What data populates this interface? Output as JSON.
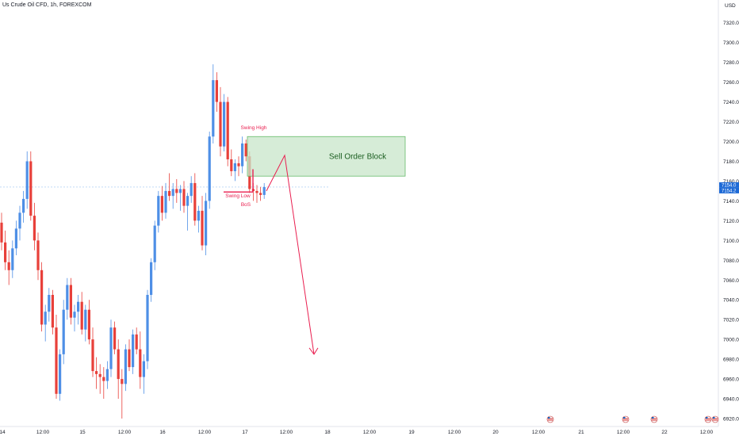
{
  "header": {
    "title": "Us Crude Oil CFD, 1h, FOREXCOM",
    "currency": "USD"
  },
  "colors": {
    "up": "#4e8fe6",
    "down": "#e8403a",
    "annotation": "#e91e4f",
    "order_block_fill": "#c8e6c9",
    "order_block_border": "#66bb6a",
    "price_tag": "#1e6ad6"
  },
  "chart_data": {
    "type": "candlestick",
    "title": "Us Crude Oil CFD, 1h, FOREXCOM",
    "ylim": [
      6912,
      7343
    ],
    "y_ticks": [
      6920.0,
      6940.0,
      6960.0,
      6980.0,
      7000.0,
      7020.0,
      7040.0,
      7060.0,
      7080.0,
      7100.0,
      7120.0,
      7140.0,
      7160.0,
      7180.0,
      7200.0,
      7220.0,
      7240.0,
      7260.0,
      7280.0,
      7300.0,
      7320.0
    ],
    "x_ticks": [
      "14",
      "12:00",
      "15",
      "12:00",
      "16",
      "12:00",
      "17",
      "12:00",
      "18",
      "12:00",
      "19",
      "12:00",
      "20",
      "12:00",
      "21",
      "12:00",
      "22",
      "12:00"
    ],
    "candles": [
      {
        "o": 7118,
        "h": 7128,
        "l": 7090,
        "c": 7098
      },
      {
        "o": 7098,
        "h": 7110,
        "l": 7070,
        "c": 7078
      },
      {
        "o": 7078,
        "h": 7090,
        "l": 7055,
        "c": 7070
      },
      {
        "o": 7070,
        "h": 7100,
        "l": 7062,
        "c": 7092
      },
      {
        "o": 7092,
        "h": 7120,
        "l": 7085,
        "c": 7112
      },
      {
        "o": 7112,
        "h": 7135,
        "l": 7100,
        "c": 7128
      },
      {
        "o": 7128,
        "h": 7150,
        "l": 7118,
        "c": 7142
      },
      {
        "o": 7142,
        "h": 7190,
        "l": 7132,
        "c": 7180
      },
      {
        "o": 7180,
        "h": 7190,
        "l": 7120,
        "c": 7125
      },
      {
        "o": 7125,
        "h": 7138,
        "l": 7090,
        "c": 7100
      },
      {
        "o": 7100,
        "h": 7108,
        "l": 7060,
        "c": 7070
      },
      {
        "o": 7070,
        "h": 7078,
        "l": 7008,
        "c": 7015
      },
      {
        "o": 7015,
        "h": 7035,
        "l": 6998,
        "c": 7028
      },
      {
        "o": 7028,
        "h": 7052,
        "l": 7018,
        "c": 7045
      },
      {
        "o": 7045,
        "h": 7050,
        "l": 7005,
        "c": 7012
      },
      {
        "o": 7012,
        "h": 7025,
        "l": 6940,
        "c": 6945
      },
      {
        "o": 6945,
        "h": 6990,
        "l": 6938,
        "c": 6985
      },
      {
        "o": 6985,
        "h": 7040,
        "l": 6975,
        "c": 7030
      },
      {
        "o": 7030,
        "h": 7062,
        "l": 7020,
        "c": 7055
      },
      {
        "o": 7055,
        "h": 7062,
        "l": 7015,
        "c": 7022
      },
      {
        "o": 7022,
        "h": 7035,
        "l": 7008,
        "c": 7028
      },
      {
        "o": 7028,
        "h": 7045,
        "l": 7015,
        "c": 7038
      },
      {
        "o": 7038,
        "h": 7048,
        "l": 7005,
        "c": 7010
      },
      {
        "o": 7010,
        "h": 7035,
        "l": 6998,
        "c": 7030
      },
      {
        "o": 7030,
        "h": 7040,
        "l": 6995,
        "c": 7000
      },
      {
        "o": 7000,
        "h": 7012,
        "l": 6962,
        "c": 6968
      },
      {
        "o": 6968,
        "h": 6982,
        "l": 6950,
        "c": 6965
      },
      {
        "o": 6965,
        "h": 6975,
        "l": 6945,
        "c": 6962
      },
      {
        "o": 6962,
        "h": 6972,
        "l": 6940,
        "c": 6958
      },
      {
        "o": 6958,
        "h": 6978,
        "l": 6950,
        "c": 6970
      },
      {
        "o": 6970,
        "h": 7020,
        "l": 6962,
        "c": 7012
      },
      {
        "o": 7012,
        "h": 7018,
        "l": 6985,
        "c": 6990
      },
      {
        "o": 6990,
        "h": 7000,
        "l": 6940,
        "c": 6960
      },
      {
        "o": 6960,
        "h": 6970,
        "l": 6920,
        "c": 6955
      },
      {
        "o": 6955,
        "h": 6995,
        "l": 6948,
        "c": 6990
      },
      {
        "o": 6990,
        "h": 7000,
        "l": 6968,
        "c": 6972
      },
      {
        "o": 6972,
        "h": 7010,
        "l": 6965,
        "c": 7005
      },
      {
        "o": 7005,
        "h": 7012,
        "l": 6985,
        "c": 6990
      },
      {
        "o": 6990,
        "h": 7008,
        "l": 6950,
        "c": 6962
      },
      {
        "o": 6962,
        "h": 6985,
        "l": 6945,
        "c": 6978
      },
      {
        "o": 6978,
        "h": 7050,
        "l": 6970,
        "c": 7045
      },
      {
        "o": 7045,
        "h": 7082,
        "l": 7038,
        "c": 7078
      },
      {
        "o": 7078,
        "h": 7120,
        "l": 7070,
        "c": 7115
      },
      {
        "o": 7115,
        "h": 7150,
        "l": 7108,
        "c": 7145
      },
      {
        "o": 7145,
        "h": 7155,
        "l": 7120,
        "c": 7128
      },
      {
        "o": 7128,
        "h": 7158,
        "l": 7122,
        "c": 7150
      },
      {
        "o": 7150,
        "h": 7168,
        "l": 7140,
        "c": 7145
      },
      {
        "o": 7145,
        "h": 7158,
        "l": 7132,
        "c": 7152
      },
      {
        "o": 7152,
        "h": 7162,
        "l": 7138,
        "c": 7148
      },
      {
        "o": 7148,
        "h": 7156,
        "l": 7130,
        "c": 7152
      },
      {
        "o": 7152,
        "h": 7160,
        "l": 7128,
        "c": 7135
      },
      {
        "o": 7135,
        "h": 7148,
        "l": 7110,
        "c": 7145
      },
      {
        "o": 7145,
        "h": 7165,
        "l": 7138,
        "c": 7158
      },
      {
        "o": 7158,
        "h": 7168,
        "l": 7115,
        "c": 7120
      },
      {
        "o": 7120,
        "h": 7135,
        "l": 7108,
        "c": 7130
      },
      {
        "o": 7130,
        "h": 7145,
        "l": 7090,
        "c": 7095
      },
      {
        "o": 7095,
        "h": 7148,
        "l": 7085,
        "c": 7140
      },
      {
        "o": 7140,
        "h": 7210,
        "l": 7132,
        "c": 7205
      },
      {
        "o": 7205,
        "h": 7278,
        "l": 7198,
        "c": 7262
      },
      {
        "o": 7262,
        "h": 7270,
        "l": 7230,
        "c": 7240
      },
      {
        "o": 7240,
        "h": 7255,
        "l": 7185,
        "c": 7195
      },
      {
        "o": 7195,
        "h": 7248,
        "l": 7190,
        "c": 7240
      },
      {
        "o": 7240,
        "h": 7245,
        "l": 7175,
        "c": 7182
      },
      {
        "o": 7182,
        "h": 7192,
        "l": 7165,
        "c": 7170
      },
      {
        "o": 7170,
        "h": 7182,
        "l": 7160,
        "c": 7178
      },
      {
        "o": 7178,
        "h": 7185,
        "l": 7165,
        "c": 7175
      },
      {
        "o": 7175,
        "h": 7205,
        "l": 7168,
        "c": 7198
      },
      {
        "o": 7198,
        "h": 7202,
        "l": 7180,
        "c": 7185
      },
      {
        "o": 7185,
        "h": 7190,
        "l": 7148,
        "c": 7152
      },
      {
        "o": 7152,
        "h": 7158,
        "l": 7140,
        "c": 7150
      },
      {
        "o": 7150,
        "h": 7156,
        "l": 7138,
        "c": 7148
      },
      {
        "o": 7148,
        "h": 7154,
        "l": 7140,
        "c": 7146
      },
      {
        "o": 7146,
        "h": 7158,
        "l": 7142,
        "c": 7154
      }
    ],
    "current_price": 7154.0,
    "bid_price": 7154.2,
    "annotations": {
      "swing_high": "Swing High",
      "swing_low": "Swing Low",
      "bos": "BoS",
      "order_block": "Sell Order Block"
    },
    "order_block_range": [
      7165,
      7205
    ],
    "projection": [
      7186,
      6985
    ]
  }
}
